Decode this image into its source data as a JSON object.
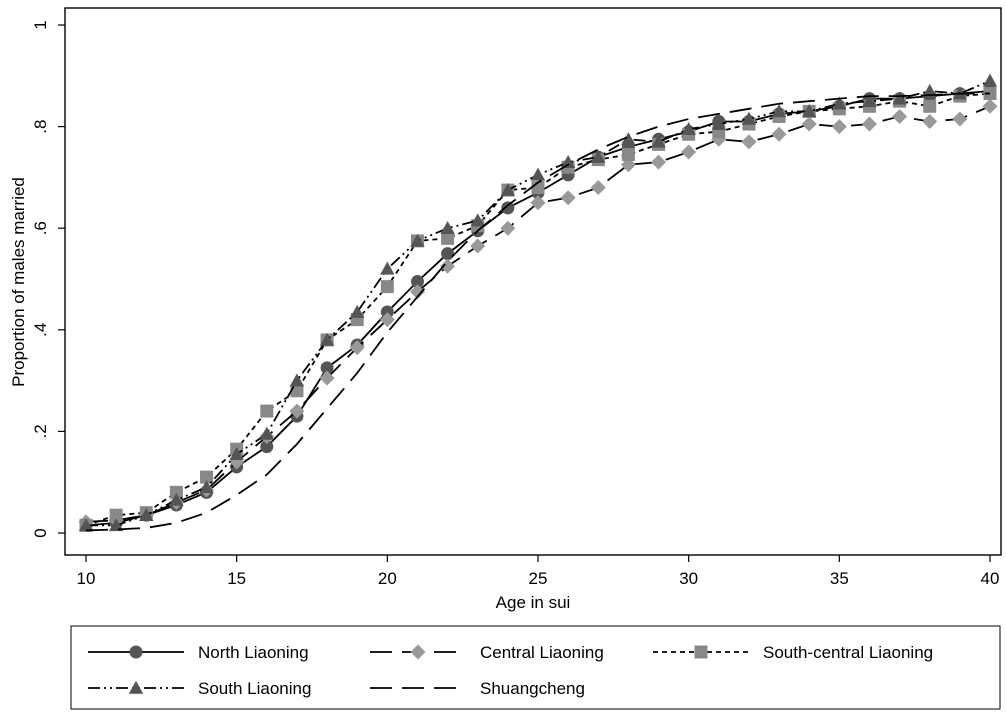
{
  "chart_data": {
    "type": "line",
    "xlabel": "Age in sui",
    "ylabel": "Proportion of males married",
    "xlim": [
      10,
      40
    ],
    "ylim": [
      0,
      1
    ],
    "x_ticks": [
      "10",
      "15",
      "20",
      "25",
      "30",
      "35",
      "40"
    ],
    "y_ticks": [
      "0",
      ".2",
      ".4",
      ".6",
      ".8",
      "1"
    ],
    "grid": false,
    "legend_position": "bottom",
    "x": [
      10,
      11,
      12,
      13,
      14,
      15,
      16,
      17,
      18,
      19,
      20,
      21,
      22,
      23,
      24,
      25,
      26,
      27,
      28,
      29,
      30,
      31,
      32,
      33,
      34,
      35,
      36,
      37,
      38,
      39,
      40
    ],
    "series": [
      {
        "name": "North Liaoning",
        "marker": "circle",
        "dash": "solid",
        "color": "#555555",
        "values": [
          0.015,
          0.02,
          0.035,
          0.055,
          0.08,
          0.13,
          0.17,
          0.23,
          0.325,
          0.37,
          0.435,
          0.495,
          0.55,
          0.595,
          0.64,
          0.67,
          0.705,
          0.74,
          0.76,
          0.775,
          0.79,
          0.81,
          0.81,
          0.825,
          0.83,
          0.84,
          0.855,
          0.855,
          0.86,
          0.865,
          0.87
        ]
      },
      {
        "name": "Central Liaoning",
        "marker": "diamond",
        "dash": "longdash",
        "color": "#999999",
        "values": [
          0.022,
          0.025,
          0.035,
          0.06,
          0.085,
          0.14,
          0.19,
          0.24,
          0.305,
          0.365,
          0.42,
          0.475,
          0.525,
          0.565,
          0.6,
          0.65,
          0.66,
          0.68,
          0.725,
          0.73,
          0.75,
          0.775,
          0.77,
          0.785,
          0.805,
          0.8,
          0.805,
          0.82,
          0.81,
          0.815,
          0.84
        ]
      },
      {
        "name": "South-central Liaoning",
        "marker": "square",
        "dash": "shortdash",
        "color": "#888888",
        "values": [
          0.015,
          0.035,
          0.04,
          0.08,
          0.11,
          0.165,
          0.24,
          0.28,
          0.38,
          0.42,
          0.485,
          0.575,
          0.58,
          0.605,
          0.675,
          0.68,
          0.72,
          0.735,
          0.745,
          0.765,
          0.785,
          0.79,
          0.805,
          0.82,
          0.83,
          0.835,
          0.84,
          0.85,
          0.84,
          0.86,
          0.865
        ]
      },
      {
        "name": "South Liaoning",
        "marker": "triangle",
        "dash": "dashdotdot",
        "color": "#555555",
        "values": [
          0.015,
          0.015,
          0.035,
          0.065,
          0.09,
          0.155,
          0.195,
          0.3,
          0.38,
          0.435,
          0.52,
          0.575,
          0.6,
          0.615,
          0.675,
          0.705,
          0.73,
          0.74,
          0.775,
          0.77,
          0.795,
          0.805,
          0.815,
          0.83,
          0.83,
          0.845,
          0.85,
          0.855,
          0.87,
          0.865,
          0.89
        ]
      },
      {
        "name": "Shuangcheng",
        "marker": "none",
        "dash": "longdash",
        "color": "#000000",
        "values": [
          0.005,
          0.007,
          0.01,
          0.02,
          0.04,
          0.075,
          0.115,
          0.175,
          0.245,
          0.315,
          0.395,
          0.465,
          0.535,
          0.595,
          0.645,
          0.69,
          0.725,
          0.755,
          0.78,
          0.8,
          0.815,
          0.825,
          0.835,
          0.845,
          0.85,
          0.855,
          0.86,
          0.86,
          0.862,
          0.865,
          0.865
        ]
      }
    ]
  }
}
